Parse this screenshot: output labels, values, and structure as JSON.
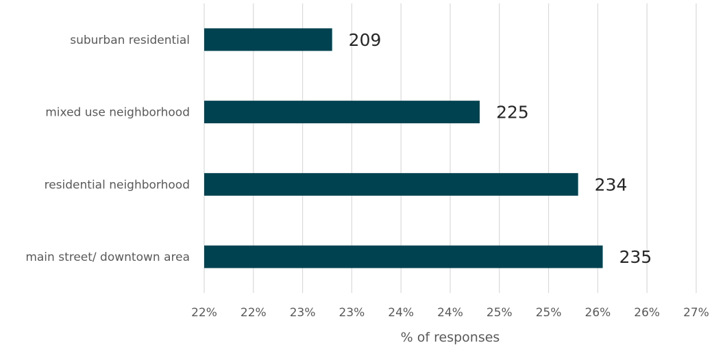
{
  "chart_data": {
    "type": "bar",
    "orientation": "horizontal",
    "categories": [
      "suburban residential",
      "mixed use neighborhood",
      "residential neighborhood",
      "main street/ downtown area"
    ],
    "values": [
      23.3,
      24.8,
      25.8,
      26.05
    ],
    "data_labels": [
      "209",
      "225",
      "234",
      "235"
    ],
    "xlabel": "% of responses",
    "ylabel": "",
    "xlim": [
      22,
      27
    ],
    "tick_labels": [
      "22%",
      "22%",
      "23%",
      "23%",
      "24%",
      "24%",
      "25%",
      "25%",
      "26%",
      "26%",
      "27%"
    ],
    "grid": true,
    "bar_color": "#00424f",
    "grid_color": "#d9d9d9"
  }
}
